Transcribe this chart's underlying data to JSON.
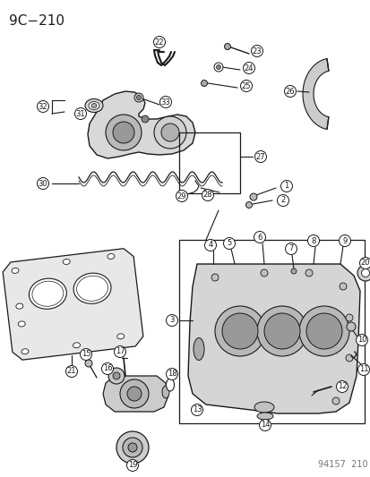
{
  "title": "9C−210",
  "footer": "94157  210",
  "bg_color": "#ffffff",
  "line_color": "#1a1a1a",
  "title_fontsize": 11,
  "footer_fontsize": 7,
  "fig_width": 4.14,
  "fig_height": 5.33,
  "dpi": 100
}
